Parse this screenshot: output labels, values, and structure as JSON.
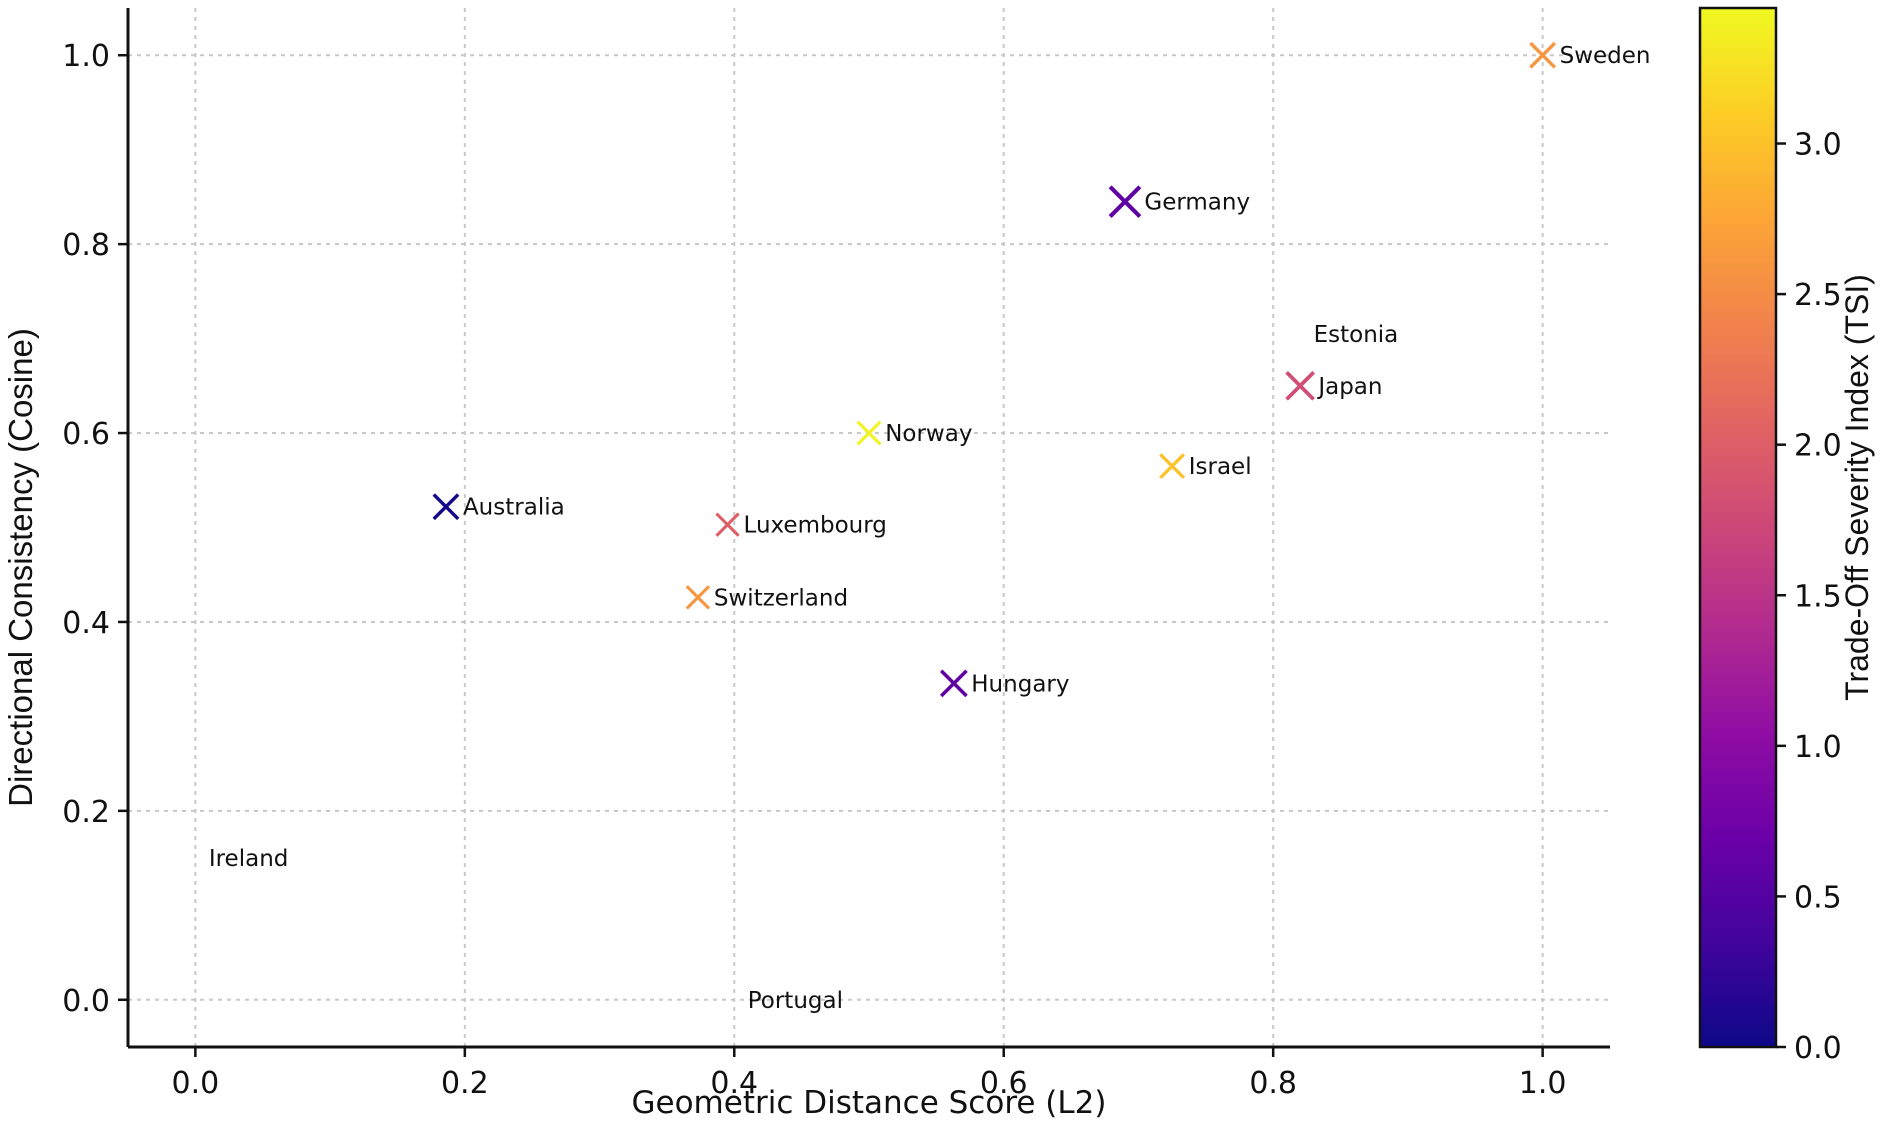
{
  "chart_data": {
    "type": "scatter",
    "title": "",
    "xlabel": "Geometric Distance Score (L2)",
    "ylabel": "Directional Consistency (Cosine)",
    "xlim": [
      -0.05,
      1.05
    ],
    "ylim": [
      -0.05,
      1.05
    ],
    "xticks": [
      "0.0",
      "0.2",
      "0.4",
      "0.6",
      "0.8",
      "1.0"
    ],
    "yticks": [
      "0.0",
      "0.2",
      "0.4",
      "0.6",
      "0.8",
      "1.0"
    ],
    "grid": true,
    "marker": "x",
    "colorbar": {
      "label": "Trade-Off Severity Index (TSI)",
      "min": 0.0,
      "max": 3.45,
      "ticks": [
        "0.0",
        "0.5",
        "1.0",
        "1.5",
        "2.0",
        "2.5",
        "3.0"
      ],
      "colormap": "plasma"
    },
    "points": [
      {
        "name": "Sweden",
        "x": 1.0,
        "y": 1.0,
        "tsi": 2.6,
        "size": 1.0
      },
      {
        "name": "Germany",
        "x": 0.69,
        "y": 0.845,
        "tsi": 0.6,
        "size": 1.6
      },
      {
        "name": "Estonia",
        "x": 0.83,
        "y": 0.705,
        "tsi": 0.0,
        "size": 0.0
      },
      {
        "name": "Japan",
        "x": 0.82,
        "y": 0.65,
        "tsi": 1.8,
        "size": 1.3
      },
      {
        "name": "Norway",
        "x": 0.5,
        "y": 0.6,
        "tsi": 3.4,
        "size": 0.8
      },
      {
        "name": "Israel",
        "x": 0.725,
        "y": 0.565,
        "tsi": 3.0,
        "size": 0.9
      },
      {
        "name": "Australia",
        "x": 0.186,
        "y": 0.522,
        "tsi": 0.05,
        "size": 1.0
      },
      {
        "name": "Luxembourg",
        "x": 0.395,
        "y": 0.503,
        "tsi": 2.0,
        "size": 0.75
      },
      {
        "name": "Switzerland",
        "x": 0.373,
        "y": 0.426,
        "tsi": 2.6,
        "size": 0.75
      },
      {
        "name": "Hungary",
        "x": 0.563,
        "y": 0.335,
        "tsi": 0.6,
        "size": 1.1
      },
      {
        "name": "Ireland",
        "x": 0.01,
        "y": 0.15,
        "tsi": 0.0,
        "size": 0.0
      },
      {
        "name": "Portugal",
        "x": 0.41,
        "y": 0.0,
        "tsi": 0.0,
        "size": 0.0
      }
    ]
  }
}
